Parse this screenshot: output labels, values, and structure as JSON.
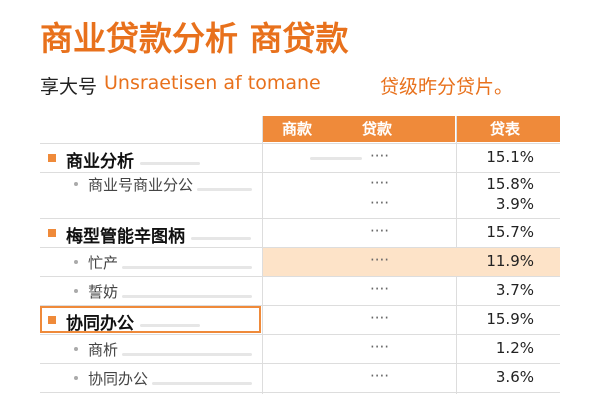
{
  "header": {
    "title": "商业贷款分析 商贷款",
    "subtitle": [
      "享大号",
      "Unsraetisen af tomane",
      "贷级昨分贷片。"
    ]
  },
  "table": {
    "columns": [
      "商款",
      "贷款",
      "贷表"
    ],
    "rows": [
      {
        "label": "商业分析",
        "level": "section",
        "dots": [
          "····"
        ],
        "values": [
          "15.1%"
        ]
      },
      {
        "label": "商业号商业分公",
        "level": "item",
        "dots": [
          "····",
          "····"
        ],
        "values": [
          "15.8%",
          "3.9%"
        ]
      },
      {
        "label": "梅型管能辛图柄",
        "level": "section",
        "dots": [
          "····"
        ],
        "values": [
          "15.7%"
        ]
      },
      {
        "label": "忙产",
        "level": "item",
        "dots": [
          "····"
        ],
        "values": [
          "11.9%"
        ],
        "highlight": true
      },
      {
        "label": "誓妨",
        "level": "item",
        "dots": [
          "····"
        ],
        "values": [
          "3.7%"
        ]
      },
      {
        "label": "协同办公",
        "level": "section",
        "dots": [
          "····"
        ],
        "values": [
          "15.9%"
        ],
        "boxed": true
      },
      {
        "label": "商析",
        "level": "item",
        "dots": [
          "····"
        ],
        "values": [
          "1.2%"
        ]
      },
      {
        "label": "协同办公",
        "level": "item",
        "dots": [
          "····"
        ],
        "values": [
          "3.6%"
        ]
      }
    ]
  }
}
